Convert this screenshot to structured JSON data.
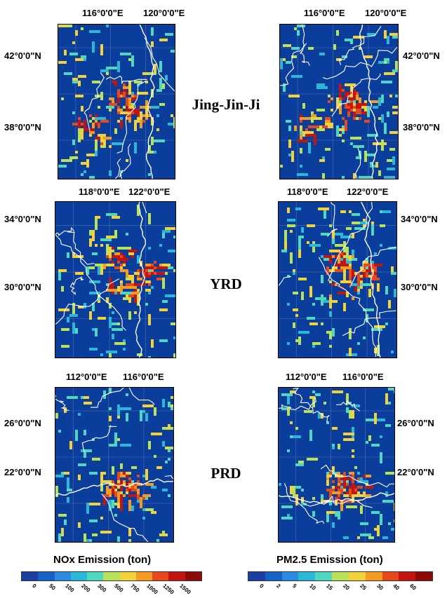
{
  "regions": [
    {
      "name": "Jing-Jin-Ji",
      "lon_ticks": [
        "116°0'0\"E",
        "120°0'0\"E"
      ],
      "lat_ticks": [
        "42°0'0\"N",
        "38°0'0\"N"
      ]
    },
    {
      "name": "YRD",
      "lon_ticks": [
        "118°0'0\"E",
        "122°0'0\"E"
      ],
      "lat_ticks": [
        "34°0'0\"N",
        "30°0'0\"N"
      ]
    },
    {
      "name": "PRD",
      "lon_ticks": [
        "112°0'0\"E",
        "116°0'0\"E"
      ],
      "lat_ticks": [
        "26°0'0\"N",
        "22°0'0\"N"
      ]
    }
  ],
  "colorbars": {
    "nox": {
      "title": "NOx Emission (ton)",
      "labels": [
        "0",
        "50",
        "100",
        "200",
        "300",
        "500",
        "750",
        "1000",
        "1250",
        "1500"
      ],
      "colors": [
        "#1a3fa0",
        "#1660c8",
        "#2a8be0",
        "#2bb8d8",
        "#4fd7c0",
        "#b8e25a",
        "#f2d23a",
        "#f59a22",
        "#e8481c",
        "#c4140f",
        "#8c0a0a"
      ]
    },
    "pm25": {
      "title": "PM2.5 Emission (ton)",
      "labels": [
        "0",
        "2",
        "5",
        "10",
        "15",
        "20",
        "25",
        "30",
        "40",
        "60"
      ],
      "colors": [
        "#1a3fa0",
        "#1660c8",
        "#2a8be0",
        "#2bb8d8",
        "#4fd7c0",
        "#b8e25a",
        "#f2d23a",
        "#f59a22",
        "#e8481c",
        "#c4140f",
        "#8c0a0a"
      ]
    }
  }
}
